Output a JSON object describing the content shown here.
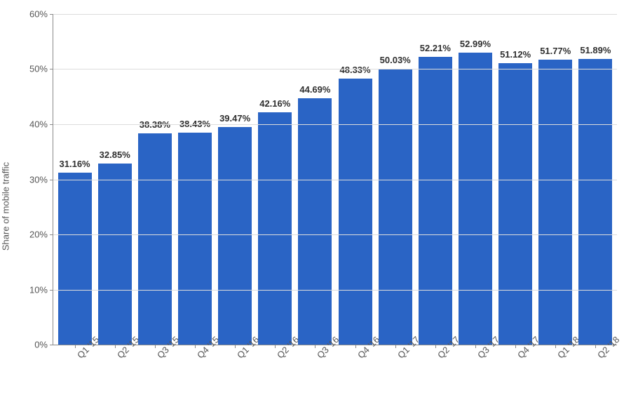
{
  "chart": {
    "type": "bar",
    "y_axis_title": "Share of mobile traffic",
    "categories": [
      "Q1 '15",
      "Q2 '15",
      "Q3 '15",
      "Q4 '15",
      "Q1 '16",
      "Q2 '16",
      "Q3 '16",
      "Q4 '16",
      "Q1 '17",
      "Q2 '17",
      "Q3 '17",
      "Q4 '17",
      "Q1 '18",
      "Q2 '18"
    ],
    "values": [
      31.16,
      32.85,
      38.38,
      38.43,
      39.47,
      42.16,
      44.69,
      48.33,
      50.03,
      52.21,
      52.99,
      51.12,
      51.77,
      51.89
    ],
    "value_suffix": "%",
    "bar_color": "#2a64c5",
    "ylim": [
      0,
      60
    ],
    "ytick_step": 10,
    "y_tick_suffix": "%",
    "grid_color": "#dcdcdc",
    "axis_color": "#8a8a8a",
    "background_color": "#ffffff",
    "label_fontsize": 13,
    "value_fontsize": 13,
    "value_fontweight": 700,
    "value_color": "#2f2f2f",
    "label_color": "#565656",
    "bar_width_ratio": 0.84,
    "x_label_rotation_deg": -45
  }
}
